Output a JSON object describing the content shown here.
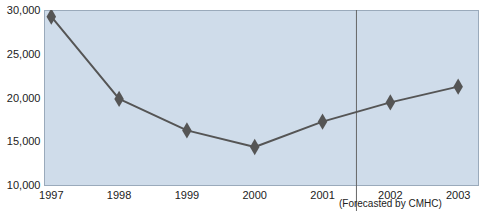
{
  "chart_data": {
    "type": "line",
    "categories": [
      "1997",
      "1998",
      "1999",
      "2000",
      "2001",
      "2002",
      "2003"
    ],
    "values": [
      29300,
      19900,
      16300,
      14400,
      17300,
      19500,
      21300
    ],
    "color": "#555555",
    "marker": "diamond",
    "ylim": [
      10000,
      30000
    ],
    "yticks": [
      {
        "value": 10000,
        "label": "10,000"
      },
      {
        "value": 15000,
        "label": "15,000"
      },
      {
        "value": 20000,
        "label": "20,000"
      },
      {
        "value": 25000,
        "label": "25,000"
      },
      {
        "value": 30000,
        "label": "30,000"
      }
    ],
    "grid": false,
    "annotation": "(Forecasted by CMHC)"
  }
}
